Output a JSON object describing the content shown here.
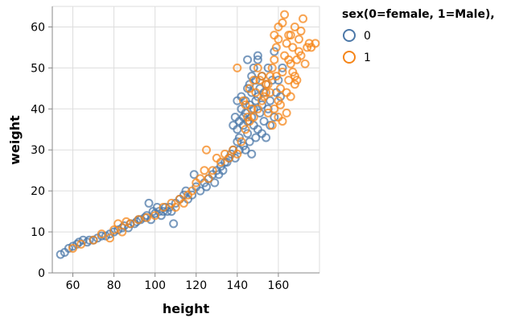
{
  "chart_data": {
    "type": "scatter",
    "title": "",
    "xlabel": "height",
    "ylabel": "weight",
    "xlim": [
      50,
      180
    ],
    "ylim": [
      0,
      65
    ],
    "x_ticks": [
      60,
      80,
      100,
      120,
      140,
      160
    ],
    "y_ticks": [
      0,
      10,
      20,
      30,
      40,
      50,
      60
    ],
    "grid": true,
    "legend": {
      "title": "sex(0=female, 1=Male),",
      "position": "right"
    },
    "series": [
      {
        "name": "0",
        "color": "#4c78a8",
        "points": [
          [
            54,
            4.5
          ],
          [
            56,
            5
          ],
          [
            58,
            6
          ],
          [
            60,
            6.5
          ],
          [
            62,
            7
          ],
          [
            63,
            7.5
          ],
          [
            65,
            8
          ],
          [
            67,
            7.5
          ],
          [
            68,
            8
          ],
          [
            70,
            8
          ],
          [
            72,
            8.5
          ],
          [
            74,
            9
          ],
          [
            76,
            9
          ],
          [
            78,
            9.5
          ],
          [
            80,
            10
          ],
          [
            82,
            10.5
          ],
          [
            84,
            11
          ],
          [
            85,
            11.5
          ],
          [
            87,
            11
          ],
          [
            88,
            12
          ],
          [
            90,
            12
          ],
          [
            91,
            12.5
          ],
          [
            92,
            13
          ],
          [
            93,
            13
          ],
          [
            95,
            13.5
          ],
          [
            96,
            14
          ],
          [
            97,
            17
          ],
          [
            98,
            13
          ],
          [
            99,
            15
          ],
          [
            100,
            14.5
          ],
          [
            101,
            16
          ],
          [
            102,
            15
          ],
          [
            103,
            14
          ],
          [
            104,
            15
          ],
          [
            105,
            16
          ],
          [
            106,
            15
          ],
          [
            107,
            16
          ],
          [
            108,
            15
          ],
          [
            109,
            12
          ],
          [
            110,
            17
          ],
          [
            112,
            18
          ],
          [
            114,
            19
          ],
          [
            115,
            20
          ],
          [
            116,
            18
          ],
          [
            118,
            19
          ],
          [
            119,
            24
          ],
          [
            120,
            21
          ],
          [
            122,
            20
          ],
          [
            124,
            22
          ],
          [
            125,
            21
          ],
          [
            126,
            23
          ],
          [
            128,
            24
          ],
          [
            129,
            22
          ],
          [
            130,
            25
          ],
          [
            131,
            24
          ],
          [
            132,
            26
          ],
          [
            133,
            25
          ],
          [
            134,
            27
          ],
          [
            135,
            27
          ],
          [
            136,
            28
          ],
          [
            137,
            29
          ],
          [
            138,
            30
          ],
          [
            139,
            28
          ],
          [
            140,
            32
          ],
          [
            140,
            35
          ],
          [
            141,
            33
          ],
          [
            141,
            37
          ],
          [
            142,
            40
          ],
          [
            142,
            43
          ],
          [
            143,
            36
          ],
          [
            143,
            38
          ],
          [
            144,
            39
          ],
          [
            144,
            42
          ],
          [
            145,
            34
          ],
          [
            145,
            37
          ],
          [
            145,
            45
          ],
          [
            146,
            41
          ],
          [
            146,
            46
          ],
          [
            147,
            38
          ],
          [
            147,
            44
          ],
          [
            147,
            48
          ],
          [
            148,
            36
          ],
          [
            148,
            40
          ],
          [
            148,
            50
          ],
          [
            149,
            42
          ],
          [
            149,
            47
          ],
          [
            150,
            35
          ],
          [
            150,
            43
          ],
          [
            150,
            52
          ],
          [
            151,
            39
          ],
          [
            151,
            45
          ],
          [
            152,
            41
          ],
          [
            152,
            48
          ],
          [
            153,
            37
          ],
          [
            153,
            44
          ],
          [
            154,
            46
          ],
          [
            155,
            40
          ],
          [
            155,
            50
          ],
          [
            156,
            42
          ],
          [
            157,
            47
          ],
          [
            158,
            38
          ],
          [
            158,
            54
          ],
          [
            159,
            44
          ],
          [
            160,
            47
          ],
          [
            161,
            43
          ],
          [
            162,
            50
          ],
          [
            140,
            42
          ],
          [
            141,
            30
          ],
          [
            143,
            31
          ],
          [
            146,
            32
          ],
          [
            149,
            33
          ],
          [
            152,
            34
          ],
          [
            145,
            52
          ],
          [
            150,
            53
          ],
          [
            154,
            33
          ],
          [
            156,
            36
          ],
          [
            138,
            36
          ],
          [
            139,
            38
          ],
          [
            144,
            30
          ],
          [
            147,
            29
          ]
        ]
      },
      {
        "name": "1",
        "color": "#f58518",
        "points": [
          [
            60,
            6
          ],
          [
            64,
            7
          ],
          [
            70,
            8
          ],
          [
            74,
            9.5
          ],
          [
            78,
            8.5
          ],
          [
            80,
            10.5
          ],
          [
            82,
            12
          ],
          [
            84,
            10
          ],
          [
            86,
            12.5
          ],
          [
            88,
            12
          ],
          [
            92,
            13
          ],
          [
            96,
            13.5
          ],
          [
            100,
            14
          ],
          [
            104,
            16
          ],
          [
            108,
            17
          ],
          [
            110,
            16
          ],
          [
            112,
            18
          ],
          [
            114,
            17
          ],
          [
            116,
            19
          ],
          [
            118,
            20
          ],
          [
            120,
            22
          ],
          [
            122,
            23
          ],
          [
            124,
            25
          ],
          [
            125,
            30
          ],
          [
            126,
            23
          ],
          [
            128,
            25
          ],
          [
            130,
            28
          ],
          [
            132,
            27
          ],
          [
            134,
            29
          ],
          [
            136,
            28
          ],
          [
            138,
            30
          ],
          [
            140,
            29
          ],
          [
            140,
            50
          ],
          [
            142,
            32
          ],
          [
            144,
            35
          ],
          [
            146,
            37
          ],
          [
            148,
            38
          ],
          [
            150,
            40
          ],
          [
            152,
            42
          ],
          [
            154,
            44
          ],
          [
            155,
            46
          ],
          [
            156,
            48
          ],
          [
            157,
            50
          ],
          [
            158,
            52
          ],
          [
            159,
            55
          ],
          [
            160,
            57
          ],
          [
            160,
            42
          ],
          [
            161,
            45
          ],
          [
            162,
            49
          ],
          [
            163,
            53
          ],
          [
            163,
            63
          ],
          [
            164,
            56
          ],
          [
            165,
            58
          ],
          [
            165,
            47
          ],
          [
            166,
            51
          ],
          [
            167,
            55
          ],
          [
            168,
            60
          ],
          [
            168,
            48
          ],
          [
            169,
            52
          ],
          [
            170,
            57
          ],
          [
            171,
            59
          ],
          [
            172,
            62
          ],
          [
            173,
            51
          ],
          [
            174,
            55
          ],
          [
            175,
            56
          ],
          [
            176,
            55
          ],
          [
            178,
            56
          ],
          [
            162,
            37
          ],
          [
            164,
            39
          ],
          [
            166,
            43
          ],
          [
            158,
            40
          ],
          [
            160,
            38
          ],
          [
            156,
            44
          ],
          [
            154,
            46
          ],
          [
            152,
            48
          ],
          [
            150,
            50
          ],
          [
            148,
            47
          ],
          [
            146,
            45
          ],
          [
            144,
            41
          ],
          [
            160,
            60
          ],
          [
            158,
            58
          ],
          [
            162,
            61
          ],
          [
            166,
            58
          ],
          [
            170,
            54
          ],
          [
            168,
            46
          ],
          [
            164,
            44
          ],
          [
            161,
            41
          ],
          [
            157,
            36
          ],
          [
            155,
            39
          ],
          [
            153,
            43
          ],
          [
            151,
            47
          ],
          [
            149,
            44
          ],
          [
            147,
            40
          ],
          [
            145,
            38
          ],
          [
            143,
            42
          ],
          [
            159,
            48
          ],
          [
            165,
            52
          ],
          [
            167,
            49
          ],
          [
            169,
            47
          ],
          [
            171,
            53
          ]
        ]
      }
    ]
  }
}
